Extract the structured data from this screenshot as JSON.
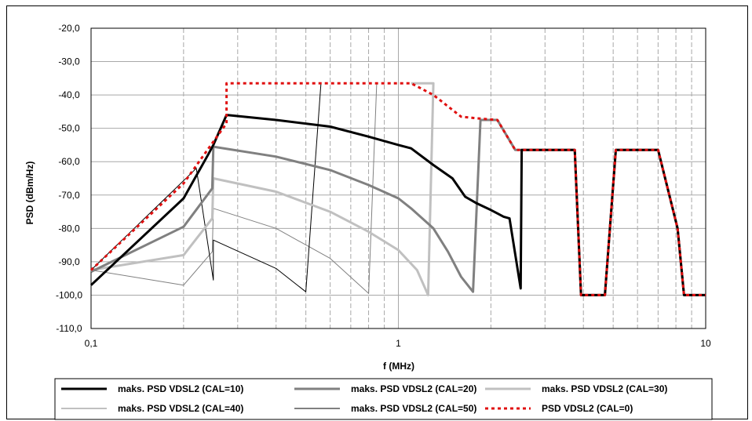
{
  "chart_data": {
    "type": "line",
    "xlabel": "f (MHz)",
    "ylabel": "PSD (dBm/Hz)",
    "xscale": "log",
    "xlim": [
      0.1,
      10
    ],
    "ylim": [
      -110,
      -20
    ],
    "grid": "on (dashed minor x, solid major y)",
    "legend_position": "bottom",
    "xticks": [
      {
        "v": 0.1,
        "label": "0,1"
      },
      {
        "v": 1,
        "label": "1"
      },
      {
        "v": 10,
        "label": "10"
      }
    ],
    "yticks": [
      {
        "v": -20,
        "label": "-20,0"
      },
      {
        "v": -30,
        "label": "-30,0"
      },
      {
        "v": -40,
        "label": "-40,0"
      },
      {
        "v": -50,
        "label": "-50,0"
      },
      {
        "v": -60,
        "label": "-60,0"
      },
      {
        "v": -70,
        "label": "-70,0"
      },
      {
        "v": -80,
        "label": "-80,0"
      },
      {
        "v": -90,
        "label": "-90,0"
      },
      {
        "v": -100,
        "label": "-100,0"
      },
      {
        "v": -110,
        "label": "-110,0"
      }
    ],
    "series": [
      {
        "name": "maks. PSD VDSL2 (CAL=10)",
        "color": "#000000",
        "width": 3,
        "dash": "",
        "points": [
          [
            0.1,
            -97
          ],
          [
            0.2,
            -71
          ],
          [
            0.24,
            -58
          ],
          [
            0.25,
            -55
          ],
          [
            0.276,
            -46
          ],
          [
            0.4,
            -47.5
          ],
          [
            0.6,
            -49.5
          ],
          [
            0.8,
            -52.5
          ],
          [
            1,
            -55
          ],
          [
            1.1,
            -56
          ],
          [
            1.3,
            -61
          ],
          [
            1.5,
            -65
          ],
          [
            1.65,
            -70.5
          ],
          [
            1.8,
            -72.5
          ],
          [
            2,
            -74.5
          ],
          [
            2.2,
            -76.5
          ],
          [
            2.3,
            -77
          ],
          [
            2.5,
            -98
          ],
          [
            2.52,
            -56.5
          ],
          [
            3.75,
            -56.5
          ],
          [
            3.93,
            -100
          ],
          [
            4.7,
            -100
          ],
          [
            5.1,
            -56.5
          ],
          [
            7,
            -56.5
          ],
          [
            8.1,
            -80
          ],
          [
            8.5,
            -100
          ],
          [
            10,
            -100
          ]
        ]
      },
      {
        "name": "maks. PSD VDSL2 (CAL=20)",
        "color": "#808080",
        "width": 3,
        "dash": "",
        "points": [
          [
            0.1,
            -93
          ],
          [
            0.2,
            -79.5
          ],
          [
            0.248,
            -68
          ],
          [
            0.25,
            -55.5
          ],
          [
            0.4,
            -58.5
          ],
          [
            0.6,
            -62.5
          ],
          [
            0.8,
            -67
          ],
          [
            1,
            -71
          ],
          [
            1.1,
            -74
          ],
          [
            1.3,
            -80
          ],
          [
            1.45,
            -87
          ],
          [
            1.6,
            -94.5
          ],
          [
            1.75,
            -99
          ],
          [
            1.85,
            -47.5
          ],
          [
            2.1,
            -47.5
          ],
          [
            2.4,
            -56.5
          ],
          [
            3.75,
            -56.5
          ],
          [
            3.93,
            -100
          ],
          [
            4.7,
            -100
          ],
          [
            5.1,
            -56.5
          ],
          [
            7,
            -56.5
          ],
          [
            8.1,
            -80
          ],
          [
            8.5,
            -100
          ],
          [
            10,
            -100
          ]
        ]
      },
      {
        "name": "maks. PSD VDSL2 (CAL=30)",
        "color": "#c0c0c0",
        "width": 3,
        "dash": "",
        "points": [
          [
            0.1,
            -92.5
          ],
          [
            0.2,
            -88
          ],
          [
            0.248,
            -77
          ],
          [
            0.25,
            -65
          ],
          [
            0.4,
            -69
          ],
          [
            0.6,
            -75
          ],
          [
            0.8,
            -81
          ],
          [
            1,
            -86.5
          ],
          [
            1.15,
            -92.5
          ],
          [
            1.25,
            -100
          ],
          [
            1.3,
            -36.5
          ],
          [
            1.1,
            -36.5
          ]
        ]
      },
      {
        "name": "maks. PSD VDSL2 (CAL=40)",
        "color": "#808080",
        "width": 1,
        "dash": "",
        "points": [
          [
            0.1,
            -92.5
          ],
          [
            0.2,
            -97
          ],
          [
            0.248,
            -87
          ],
          [
            0.25,
            -74
          ],
          [
            0.4,
            -80
          ],
          [
            0.6,
            -89
          ],
          [
            0.8,
            -99.5
          ],
          [
            0.85,
            -36.5
          ]
        ]
      },
      {
        "name": "maks. PSD VDSL2 (CAL=50)",
        "color": "#000000",
        "width": 1,
        "dash": "",
        "points": [
          [
            0.1,
            -92.5
          ],
          [
            0.22,
            -62
          ],
          [
            0.25,
            -95.5
          ],
          [
            0.25,
            -83.5
          ],
          [
            0.4,
            -92
          ],
          [
            0.5,
            -99
          ],
          [
            0.56,
            -36.5
          ]
        ]
      },
      {
        "name": "PSD VDSL2 (CAL=0)",
        "color": "#e01010",
        "width": 3,
        "dash": "4,4",
        "points": [
          [
            0.1,
            -92.5
          ],
          [
            0.2,
            -66.5
          ],
          [
            0.25,
            -54
          ],
          [
            0.276,
            -48.5
          ],
          [
            0.276,
            -36.5
          ],
          [
            1.1,
            -36.5
          ],
          [
            1.3,
            -40
          ],
          [
            1.6,
            -46.5
          ],
          [
            1.8,
            -47
          ],
          [
            2.1,
            -47.5
          ],
          [
            2.4,
            -56.5
          ],
          [
            3.75,
            -56.5
          ],
          [
            3.93,
            -100
          ],
          [
            4.7,
            -100
          ],
          [
            5.1,
            -56.5
          ],
          [
            7,
            -56.5
          ],
          [
            8.1,
            -80
          ],
          [
            8.5,
            -100
          ],
          [
            10,
            -100
          ]
        ]
      }
    ]
  }
}
